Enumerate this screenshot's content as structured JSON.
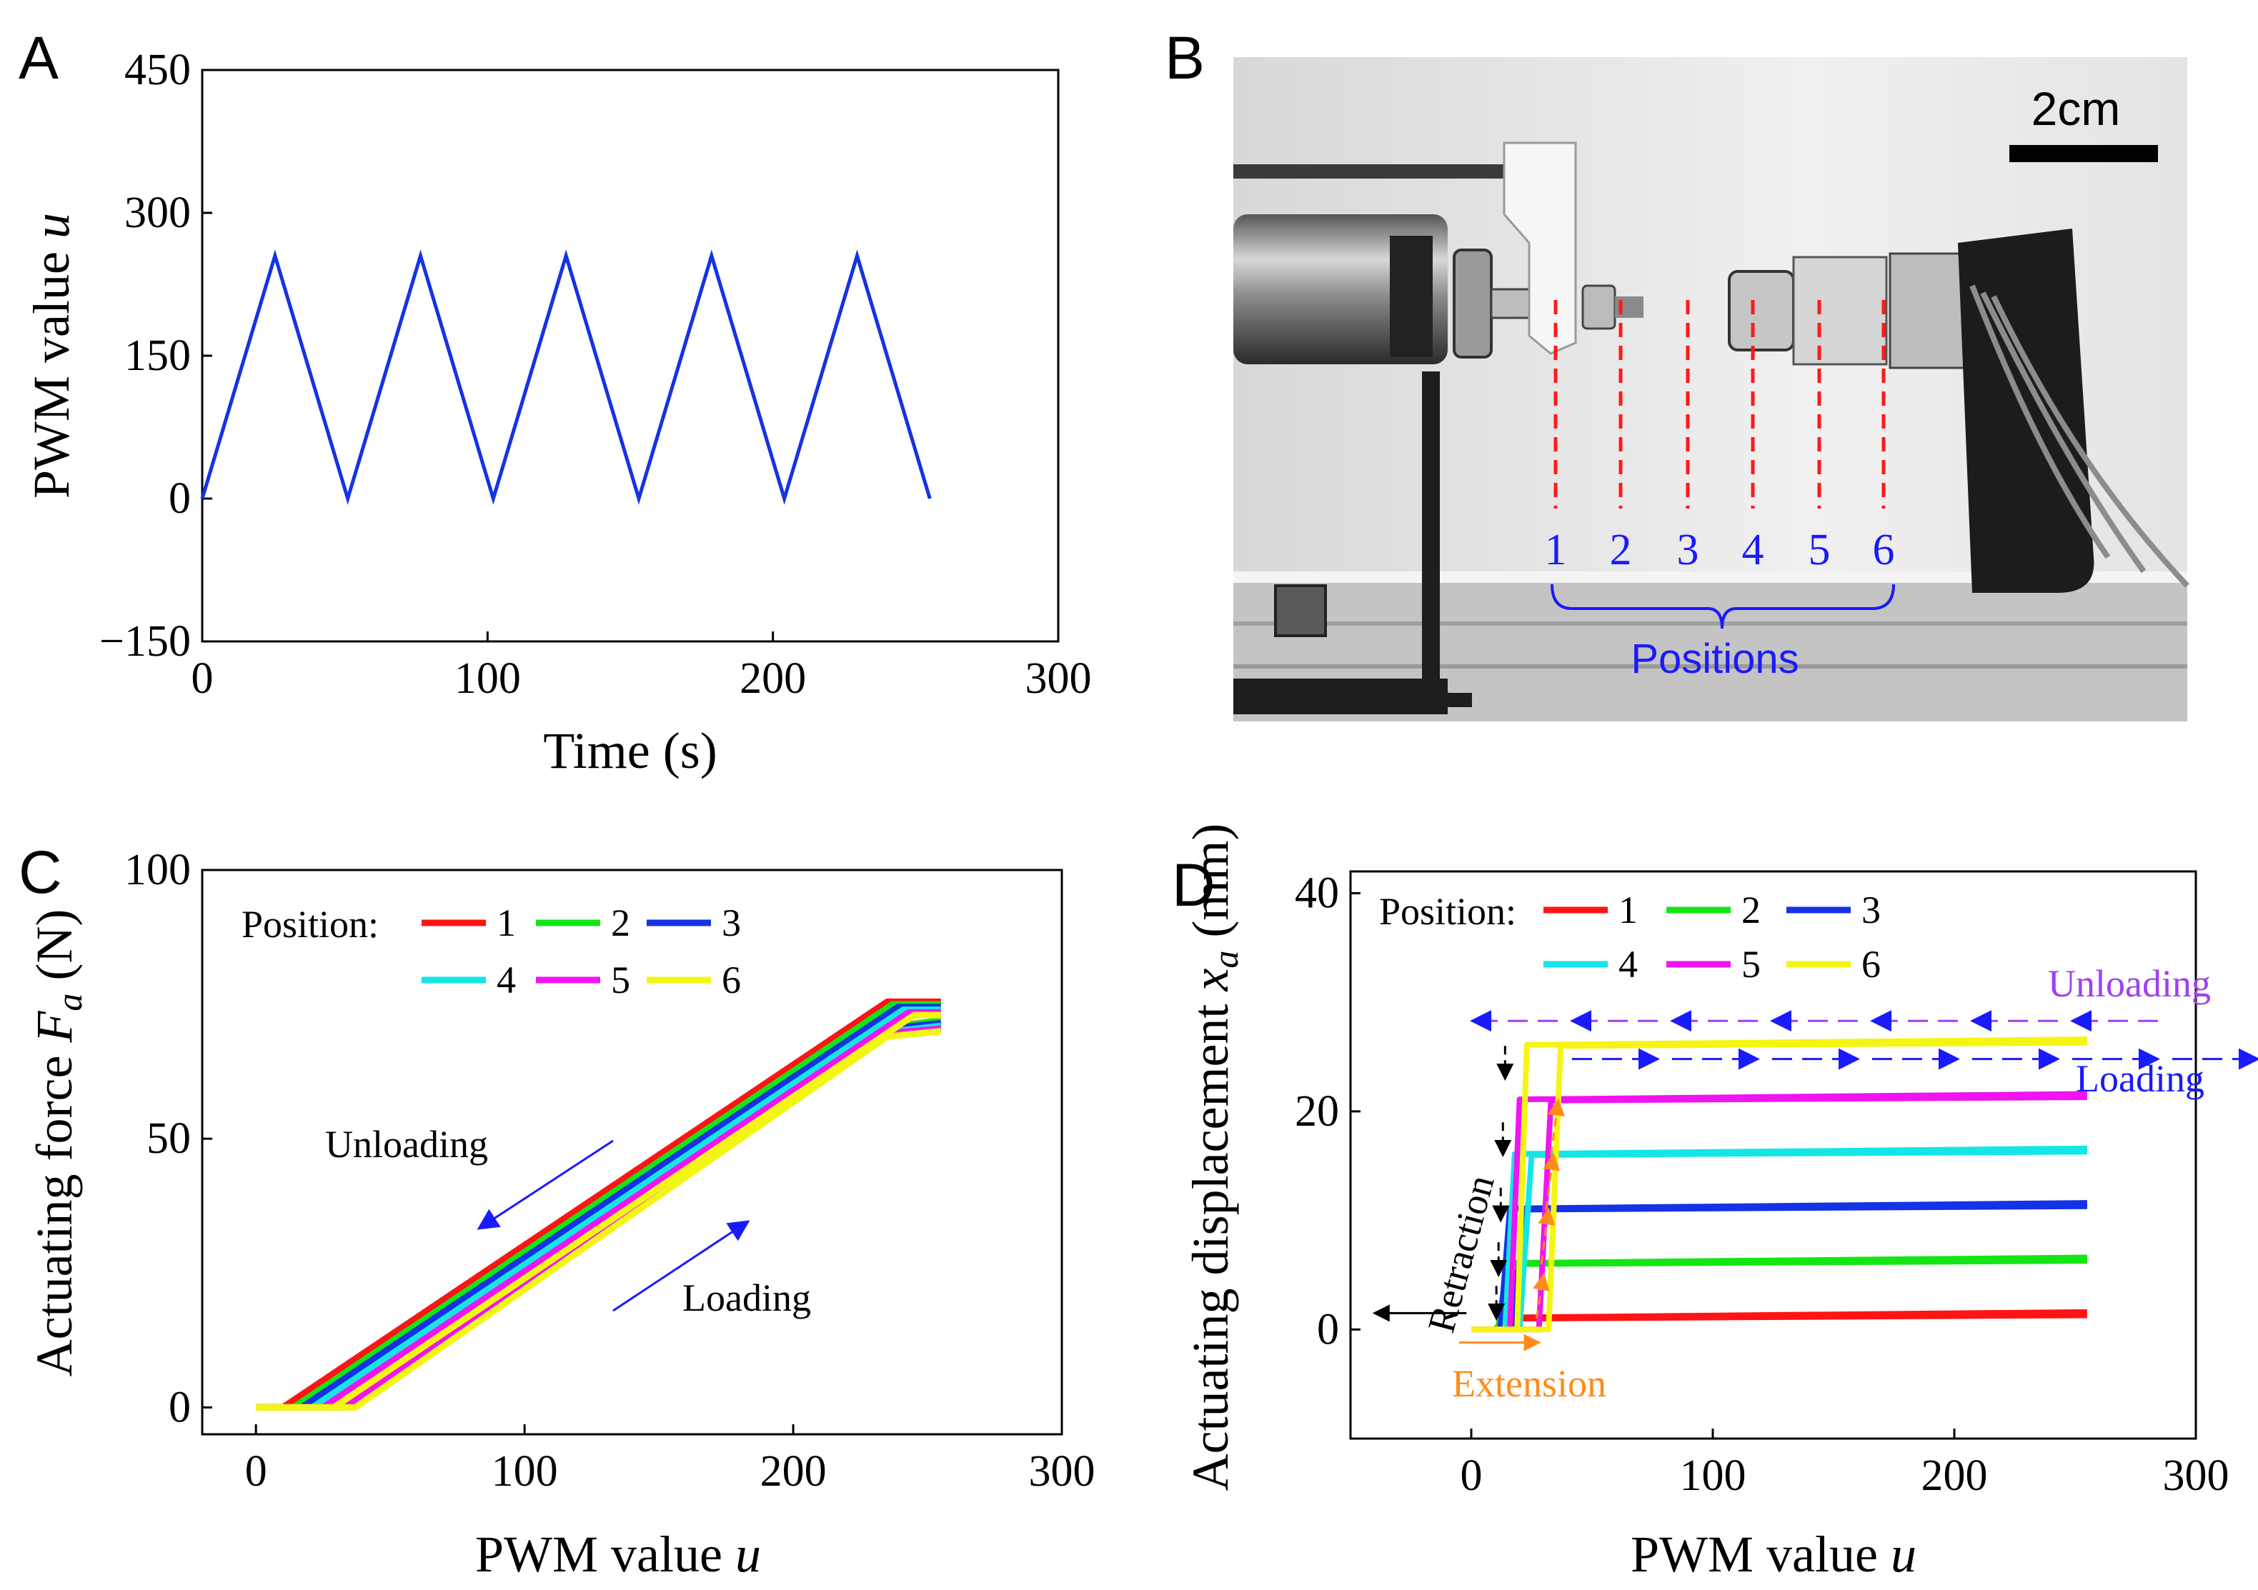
{
  "panel_labels": {
    "a": "A",
    "b": "B",
    "c": "C",
    "d": "D"
  },
  "colors": {
    "red": "#ff1414",
    "green": "#14e614",
    "blue": "#1432e6",
    "cyan": "#14e6e6",
    "magenta": "#f014f0",
    "yellow": "#f5f514",
    "orange": "#ff8c1a",
    "purple": "#a040f0",
    "annot_blue": "#1a1aff"
  },
  "photo": {
    "scale_label": "2cm",
    "position_numbers": [
      "1",
      "2",
      "3",
      "4",
      "5",
      "6"
    ],
    "positions_label": "Positions"
  },
  "chart_data": [
    {
      "panel": "A",
      "type": "line",
      "xlabel": "Time (s)",
      "ylabel_text": "PWM value",
      "ylabel_var": "u",
      "xlim": [
        0,
        300
      ],
      "ylim": [
        -150,
        450
      ],
      "xticks": [
        "0",
        "100",
        "200",
        "300"
      ],
      "yticks": [
        "−150",
        "0",
        "150",
        "300",
        "450"
      ],
      "series": [
        {
          "color": "#1432e6",
          "x": [
            0,
            25.5,
            51,
            76.5,
            102,
            127.5,
            153,
            178.5,
            204,
            229.5,
            255
          ],
          "y": [
            0,
            255,
            0,
            255,
            0,
            255,
            0,
            255,
            0,
            255,
            0
          ]
        }
      ]
    },
    {
      "panel": "C",
      "type": "line",
      "xlabel_text": "PWM value",
      "xlabel_var": "u",
      "ylabel_text": "Actuating force",
      "ylabel_var": "F",
      "ylabel_sub": "a",
      "ylabel_unit": "(N)",
      "xlim": [
        -20,
        300
      ],
      "ylim": [
        -5,
        100
      ],
      "xticks": [
        "0",
        "100",
        "200",
        "300"
      ],
      "yticks": [
        "0",
        "50",
        "100"
      ],
      "legend_title": "Position:",
      "legend_loc": "top-left",
      "annotations": {
        "unloading": "Unloading",
        "loading": "Loading"
      },
      "series": [
        {
          "name": "1",
          "color": "#ff1414",
          "loading": {
            "x": [
              0,
              22,
              222,
              255
            ],
            "y": [
              0,
              0,
              70,
              72
            ]
          },
          "unloading": {
            "x": [
              255,
              235,
              10,
              0
            ],
            "y": [
              75.5,
              75.5,
              0,
              0
            ]
          }
        },
        {
          "name": "2",
          "color": "#14e614",
          "loading": {
            "x": [
              0,
              24,
              224,
              255
            ],
            "y": [
              0,
              0,
              70,
              72
            ]
          },
          "unloading": {
            "x": [
              255,
              237,
              14,
              0
            ],
            "y": [
              75,
              75,
              0,
              0
            ]
          }
        },
        {
          "name": "3",
          "color": "#1432e6",
          "loading": {
            "x": [
              0,
              27,
              227,
              255
            ],
            "y": [
              0,
              0,
              70,
              71.5
            ]
          },
          "unloading": {
            "x": [
              255,
              239,
              17,
              0
            ],
            "y": [
              74.5,
              74.5,
              0,
              0
            ]
          }
        },
        {
          "name": "4",
          "color": "#14e6e6",
          "loading": {
            "x": [
              0,
              30,
              229,
              255
            ],
            "y": [
              0,
              0,
              69.5,
              71
            ]
          },
          "unloading": {
            "x": [
              255,
              241,
              21,
              0
            ],
            "y": [
              74,
              74,
              0,
              0
            ]
          }
        },
        {
          "name": "5",
          "color": "#f014f0",
          "loading": {
            "x": [
              0,
              33,
              232,
              255
            ],
            "y": [
              0,
              0,
              69.5,
              70.5
            ]
          },
          "unloading": {
            "x": [
              255,
              243,
              25,
              0
            ],
            "y": [
              73.5,
              73.5,
              0,
              0
            ]
          }
        },
        {
          "name": "6",
          "color": "#f5f514",
          "loading": {
            "x": [
              0,
              37,
              235,
              255
            ],
            "y": [
              0,
              0,
              69,
              70
            ]
          },
          "unloading": {
            "x": [
              255,
              245,
              29,
              0
            ],
            "y": [
              73,
              73,
              0,
              0
            ]
          }
        }
      ]
    },
    {
      "panel": "D",
      "type": "line",
      "xlabel_text": "PWM value",
      "xlabel_var": "u",
      "ylabel_text": "Actuating displacement",
      "ylabel_var": "x",
      "ylabel_sub": "a",
      "ylabel_unit": "(mm)",
      "xlim": [
        -50,
        300
      ],
      "ylim": [
        -10,
        42
      ],
      "xticks": [
        "0",
        "100",
        "200",
        "300"
      ],
      "yticks": [
        "0",
        "20",
        "40"
      ],
      "legend_title": "Position:",
      "legend_loc": "top-left",
      "annotations": {
        "unloading": "Unloading",
        "loading": "Loading",
        "retraction": "Retraction",
        "extension": "Extension"
      },
      "series": [
        {
          "name": "1",
          "color": "#ff1414",
          "level": 1,
          "up_x": 15,
          "down_x": 10
        },
        {
          "name": "2",
          "color": "#14e614",
          "level": 6,
          "up_x": 17,
          "down_x": 11
        },
        {
          "name": "3",
          "color": "#1432e6",
          "level": 11,
          "up_x": 19,
          "down_x": 12
        },
        {
          "name": "4",
          "color": "#14e6e6",
          "level": 16,
          "up_x": 22,
          "down_x": 14
        },
        {
          "name": "5",
          "color": "#f014f0",
          "level": 21,
          "up_x": 30,
          "down_x": 16
        },
        {
          "name": "6",
          "color": "#f5f514",
          "level": 26,
          "up_x": 34,
          "down_x": 19
        }
      ]
    }
  ]
}
